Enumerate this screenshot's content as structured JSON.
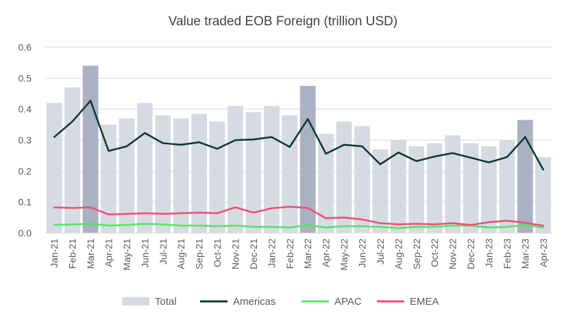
{
  "chart_data": {
    "type": "bar",
    "title": "Value traded EOB Foreign (trillion USD)",
    "xlabel": "",
    "ylabel": "",
    "ylim": [
      0,
      0.6
    ],
    "yticks": [
      "0.0",
      "0.1",
      "0.2",
      "0.3",
      "0.4",
      "0.5",
      "0.6"
    ],
    "grid": true,
    "legend_position": "bottom",
    "categories": [
      "Jan-21",
      "Feb-21",
      "Mar-21",
      "Apr-21",
      "May-21",
      "Jun-21",
      "Jul-21",
      "Aug-21",
      "Sep-21",
      "Oct-21",
      "Nov-21",
      "Dec-21",
      "Jan-22",
      "Feb-22",
      "Mar-22",
      "Apr-22",
      "May-22",
      "Jun-22",
      "Jul-22",
      "Aug-22",
      "Sep-22",
      "Oct-22",
      "Nov-22",
      "Dec-22",
      "Jan-23",
      "Feb-23",
      "Mar-23",
      "Apr-23"
    ],
    "highlighted_categories": [
      "Mar-21",
      "Mar-22",
      "Mar-23"
    ],
    "series": [
      {
        "name": "Total",
        "kind": "bar",
        "color": "#d6dae3",
        "highlight_color": "#a9b1c3",
        "values": [
          0.42,
          0.47,
          0.54,
          0.35,
          0.37,
          0.42,
          0.38,
          0.37,
          0.385,
          0.36,
          0.41,
          0.39,
          0.41,
          0.38,
          0.475,
          0.32,
          0.36,
          0.345,
          0.27,
          0.3,
          0.28,
          0.29,
          0.315,
          0.29,
          0.28,
          0.3,
          0.365,
          0.245
        ]
      },
      {
        "name": "Americas",
        "kind": "line",
        "color": "#0f3b2e",
        "values": [
          0.31,
          0.36,
          0.427,
          0.265,
          0.28,
          0.323,
          0.29,
          0.285,
          0.293,
          0.272,
          0.3,
          0.302,
          0.31,
          0.278,
          0.368,
          0.256,
          0.285,
          0.28,
          0.222,
          0.26,
          0.232,
          0.247,
          0.258,
          0.243,
          0.228,
          0.245,
          0.31,
          0.205
        ]
      },
      {
        "name": "APAC",
        "kind": "line",
        "color": "#4fe85e",
        "values": [
          0.026,
          0.028,
          0.03,
          0.024,
          0.026,
          0.03,
          0.028,
          0.024,
          0.024,
          0.022,
          0.024,
          0.02,
          0.02,
          0.018,
          0.026,
          0.018,
          0.022,
          0.022,
          0.02,
          0.016,
          0.02,
          0.02,
          0.024,
          0.024,
          0.018,
          0.02,
          0.026,
          0.018
        ]
      },
      {
        "name": "EMEA",
        "kind": "line",
        "color": "#ee4f72",
        "values": [
          0.083,
          0.081,
          0.083,
          0.06,
          0.062,
          0.064,
          0.062,
          0.064,
          0.066,
          0.064,
          0.083,
          0.066,
          0.08,
          0.085,
          0.081,
          0.048,
          0.05,
          0.044,
          0.032,
          0.028,
          0.03,
          0.028,
          0.032,
          0.026,
          0.035,
          0.04,
          0.033,
          0.024
        ]
      }
    ]
  }
}
